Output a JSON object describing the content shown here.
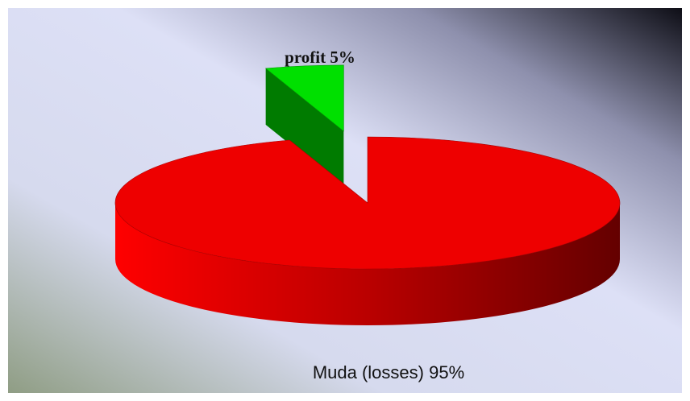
{
  "chart_data": {
    "type": "pie3d",
    "categories": [
      "profit",
      "Muda (losses)"
    ],
    "values": [
      5,
      95
    ],
    "value_labels": [
      "5%",
      "95%"
    ],
    "colors": [
      "#00e000",
      "#ee0000"
    ]
  }
}
